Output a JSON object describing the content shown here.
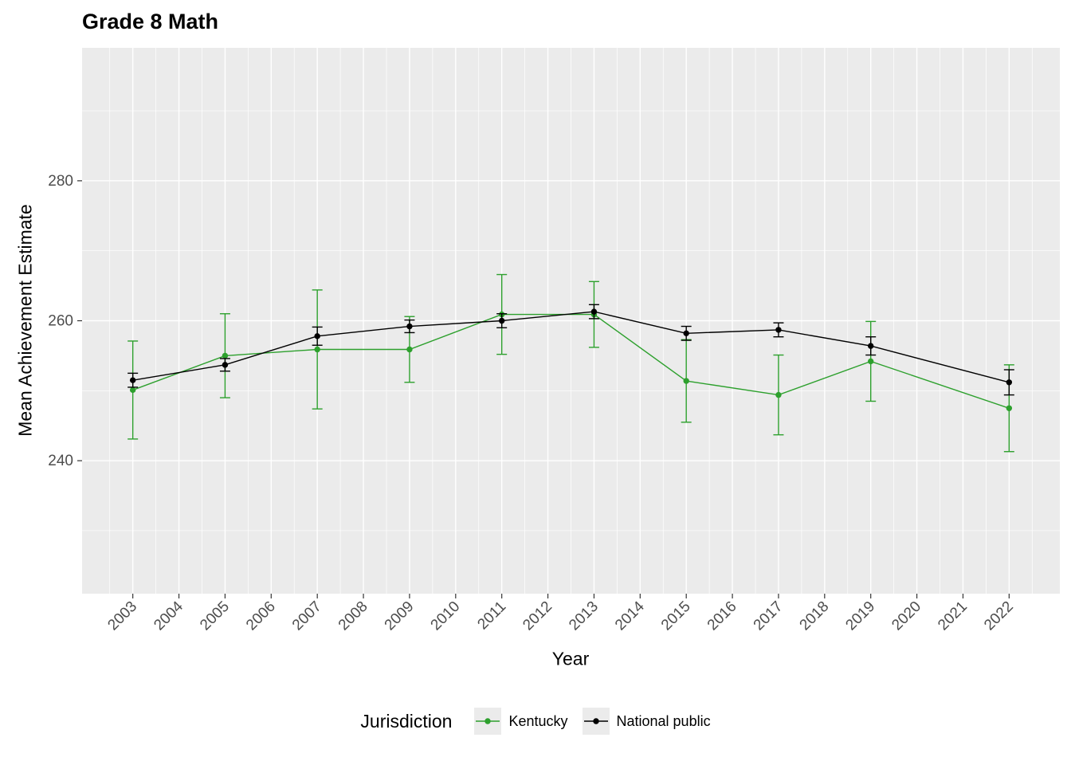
{
  "chart_data": {
    "type": "line",
    "title": "Grade 8 Math",
    "xlabel": "Year",
    "ylabel": "Mean Achievement Estimate",
    "x_ticks": [
      2003,
      2004,
      2005,
      2006,
      2007,
      2008,
      2009,
      2010,
      2011,
      2012,
      2013,
      2014,
      2015,
      2016,
      2017,
      2018,
      2019,
      2020,
      2021,
      2022
    ],
    "y_ticks": [
      240,
      260,
      280
    ],
    "y_minor_ticks": [
      230,
      250,
      270,
      290
    ],
    "xlim": [
      2001.9,
      2023.1
    ],
    "ylim": [
      221,
      299
    ],
    "grid": true,
    "error_bars": true,
    "legend": {
      "title": "Jurisdiction",
      "position": "bottom"
    },
    "x": [
      2003,
      2005,
      2007,
      2009,
      2011,
      2013,
      2015,
      2017,
      2019,
      2022
    ],
    "series": [
      {
        "name": "Kentucky",
        "color": "#2DA02D",
        "values": [
          250.1,
          255.0,
          255.9,
          255.9,
          260.9,
          260.9,
          251.4,
          249.4,
          254.2,
          247.5
        ],
        "ci_low": [
          243.1,
          249.0,
          247.4,
          251.2,
          255.2,
          256.2,
          245.5,
          243.7,
          248.5,
          241.3
        ],
        "ci_high": [
          257.1,
          261.0,
          264.4,
          260.6,
          266.6,
          265.6,
          257.3,
          255.1,
          259.9,
          253.7
        ]
      },
      {
        "name": "National public",
        "color": "#000000",
        "values": [
          251.5,
          253.7,
          257.8,
          259.2,
          260.0,
          261.3,
          258.2,
          258.7,
          256.4,
          251.2
        ],
        "ci_low": [
          250.5,
          252.8,
          256.5,
          258.3,
          259.0,
          260.3,
          257.2,
          257.7,
          255.1,
          249.4
        ],
        "ci_high": [
          252.5,
          254.6,
          259.1,
          260.1,
          261.0,
          262.3,
          259.2,
          259.7,
          257.7,
          253.0
        ]
      }
    ]
  },
  "theme": {
    "panel_background": "#EBEBEB",
    "grid_color": "#FFFFFF",
    "tick_color": "#333333",
    "tick_label_color": "#4D4D4D",
    "text_color": "#000000",
    "legend_key_background": "#EBEBEB"
  }
}
